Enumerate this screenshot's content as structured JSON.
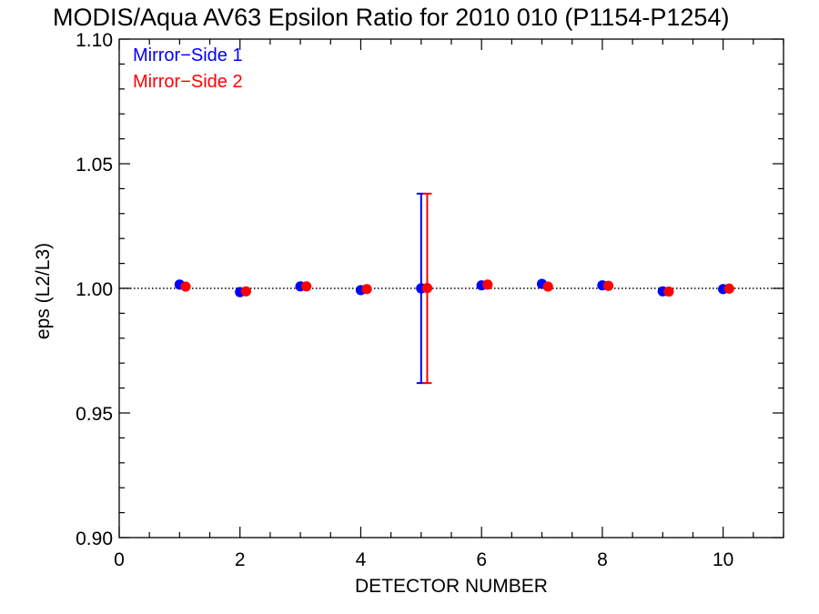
{
  "chart_data": {
    "type": "scatter",
    "title": "MODIS/Aqua AV63 Epsilon Ratio for 2010 010 (P1154-P1254)",
    "xlabel": "DETECTOR NUMBER",
    "ylabel": "eps (L2/L3)",
    "xlim": [
      0,
      11
    ],
    "ylim": [
      0.9,
      1.1
    ],
    "x_ticks": [
      0,
      2,
      4,
      6,
      8,
      10
    ],
    "x_tick_labels": [
      "0",
      "2",
      "4",
      "6",
      "8",
      "10"
    ],
    "y_ticks": [
      0.9,
      0.95,
      1.0,
      1.05,
      1.1
    ],
    "y_tick_labels": [
      "0.90",
      "0.95",
      "1.00",
      "1.05",
      "1.10"
    ],
    "reference_line": 1.0,
    "legend_position": "top-left",
    "series": [
      {
        "name": "Mirror−Side 1",
        "color": "#0000ff",
        "x": [
          1,
          2,
          3,
          4,
          5,
          6,
          7,
          8,
          9,
          10
        ],
        "y": [
          1.0015,
          0.9985,
          1.0008,
          0.9993,
          1.0,
          1.0012,
          1.0018,
          1.0012,
          0.9988,
          0.9997
        ],
        "errorbars": [
          {
            "x": 5,
            "low": 0.962,
            "high": 1.038
          }
        ]
      },
      {
        "name": "Mirror−Side 2",
        "color": "#ff0000",
        "x": [
          1.1,
          2.1,
          3.1,
          4.1,
          5.1,
          6.1,
          7.1,
          8.1,
          9.1,
          10.1
        ],
        "y": [
          1.0007,
          0.9988,
          1.0008,
          0.9997,
          1.0001,
          1.0015,
          1.0007,
          1.001,
          0.9987,
          0.9999
        ],
        "errorbars": [
          {
            "x": 5.1,
            "low": 0.962,
            "high": 1.038
          }
        ]
      }
    ]
  }
}
